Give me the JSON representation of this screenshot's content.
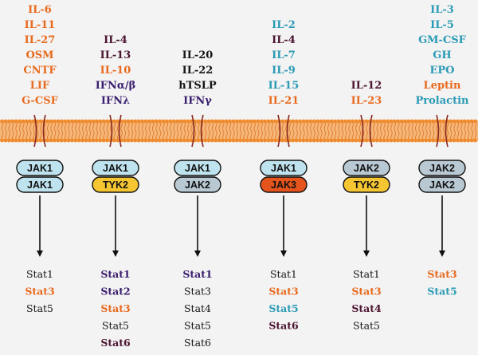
{
  "colors": {
    "orange": "#e86a1e",
    "purple": "#3b1f6e",
    "black": "#151515",
    "maroon": "#4b1430",
    "cyan": "#2a9ab5",
    "membrane_fill": "#f5b77a",
    "membrane_head": "#f08b2d",
    "receptor": "#8a2a22",
    "jak1_fill": "#bfe3ee",
    "jak2_fill": "#b9c9d3",
    "tyk2_fill": "#f6c532",
    "jak3_fill": "#e4541c"
  },
  "columns": [
    {
      "cytokines": [
        {
          "text": "IL-6",
          "color": "orange"
        },
        {
          "text": "IL-11",
          "color": "orange"
        },
        {
          "text": "IL-27",
          "color": "orange"
        },
        {
          "text": "OSM",
          "color": "orange"
        },
        {
          "text": "CNTF",
          "color": "orange"
        },
        {
          "text": "LIF",
          "color": "orange"
        },
        {
          "text": "G-CSF",
          "color": "orange"
        }
      ],
      "jaks": [
        {
          "text": "JAK1",
          "fill": "jak1_fill",
          "bold": true
        },
        {
          "text": "JAK1",
          "fill": "jak1_fill",
          "bold": true
        }
      ],
      "stats": [
        {
          "text": "Stat1",
          "color": "black",
          "bold": false
        },
        {
          "text": "Stat3",
          "color": "orange",
          "bold": true
        },
        {
          "text": "Stat5",
          "color": "black",
          "bold": false
        }
      ]
    },
    {
      "cytokines": [
        {
          "text": "IL-4",
          "color": "maroon"
        },
        {
          "text": "IL-13",
          "color": "maroon"
        },
        {
          "text": "IL-10",
          "color": "orange"
        },
        {
          "text": "IFNα/β",
          "color": "purple"
        },
        {
          "text": "IFNλ",
          "color": "purple"
        }
      ],
      "jaks": [
        {
          "text": "JAK1",
          "fill": "jak1_fill",
          "bold": true
        },
        {
          "text": "TYK2",
          "fill": "tyk2_fill",
          "bold": false
        }
      ],
      "stats": [
        {
          "text": "Stat1",
          "color": "purple",
          "bold": true
        },
        {
          "text": "Stat2",
          "color": "purple",
          "bold": true
        },
        {
          "text": "Stat3",
          "color": "orange",
          "bold": true
        },
        {
          "text": "Stat5",
          "color": "black",
          "bold": false
        },
        {
          "text": "Stat6",
          "color": "maroon",
          "bold": true
        }
      ]
    },
    {
      "cytokines": [
        {
          "text": "IL-20",
          "color": "black"
        },
        {
          "text": "IL-22",
          "color": "black"
        },
        {
          "text": "hTSLP",
          "color": "black"
        },
        {
          "text": "IFNγ",
          "color": "purple"
        }
      ],
      "jaks": [
        {
          "text": "JAK1",
          "fill": "jak1_fill",
          "bold": true
        },
        {
          "text": "JAK2",
          "fill": "jak2_fill",
          "bold": true
        }
      ],
      "stats": [
        {
          "text": "Stat1",
          "color": "purple",
          "bold": true
        },
        {
          "text": "Stat3",
          "color": "black",
          "bold": false
        },
        {
          "text": "Stat4",
          "color": "black",
          "bold": false
        },
        {
          "text": "Stat5",
          "color": "black",
          "bold": false
        },
        {
          "text": "Stat6",
          "color": "black",
          "bold": false
        }
      ]
    },
    {
      "cytokines": [
        {
          "text": "IL-2",
          "color": "cyan"
        },
        {
          "text": "IL-4",
          "color": "maroon"
        },
        {
          "text": "IL-7",
          "color": "cyan"
        },
        {
          "text": "IL-9",
          "color": "cyan"
        },
        {
          "text": "IL-15",
          "color": "cyan"
        },
        {
          "text": "IL-21",
          "color": "orange"
        }
      ],
      "jaks": [
        {
          "text": "JAK1",
          "fill": "jak1_fill",
          "bold": true
        },
        {
          "text": "JAK3",
          "fill": "jak3_fill",
          "bold": true
        }
      ],
      "stats": [
        {
          "text": "Stat1",
          "color": "black",
          "bold": false
        },
        {
          "text": "Stat3",
          "color": "orange",
          "bold": true
        },
        {
          "text": "Stat5",
          "color": "cyan",
          "bold": true
        },
        {
          "text": "Stat6",
          "color": "maroon",
          "bold": true
        }
      ]
    },
    {
      "cytokines": [
        {
          "text": "IL-12",
          "color": "maroon"
        },
        {
          "text": "IL-23",
          "color": "orange"
        }
      ],
      "jaks": [
        {
          "text": "JAK2",
          "fill": "jak2_fill",
          "bold": false
        },
        {
          "text": "TYK2",
          "fill": "tyk2_fill",
          "bold": true
        }
      ],
      "stats": [
        {
          "text": "Stat1",
          "color": "black",
          "bold": false
        },
        {
          "text": "Stat3",
          "color": "orange",
          "bold": true
        },
        {
          "text": "Stat4",
          "color": "maroon",
          "bold": true
        },
        {
          "text": "Stat5",
          "color": "black",
          "bold": false
        }
      ]
    },
    {
      "cytokines": [
        {
          "text": "IL-3",
          "color": "cyan"
        },
        {
          "text": "IL-5",
          "color": "cyan"
        },
        {
          "text": "GM-CSF",
          "color": "cyan"
        },
        {
          "text": "GH",
          "color": "cyan"
        },
        {
          "text": "EPO",
          "color": "cyan"
        },
        {
          "text": "Leptin",
          "color": "orange"
        },
        {
          "text": "Prolactin",
          "color": "cyan"
        }
      ],
      "jaks": [
        {
          "text": "JAK2",
          "fill": "jak2_fill",
          "bold": true
        },
        {
          "text": "JAK2",
          "fill": "jak2_fill",
          "bold": true
        }
      ],
      "stats": [
        {
          "text": "Stat3",
          "color": "orange",
          "bold": true
        },
        {
          "text": "Stat5",
          "color": "cyan",
          "bold": true
        }
      ]
    }
  ]
}
